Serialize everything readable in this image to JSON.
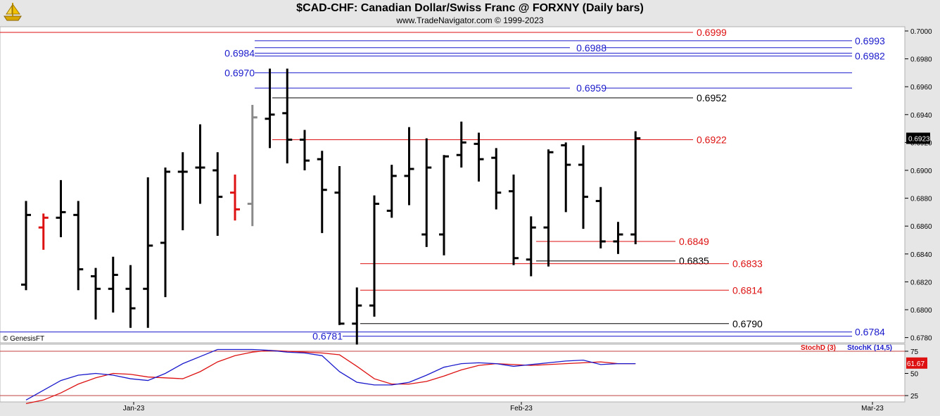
{
  "header": {
    "title": "$CAD-CHF:  Canadian Dollar/Swiss Franc @ FORXNY  (Daily bars)",
    "subtitle": "www.TradeNavigator.com © 1999-2023"
  },
  "copyright": "© GenesisFT",
  "colors": {
    "red": "#dd1111",
    "blue": "#1a1acc",
    "black": "#000000",
    "gray": "#8a8a8a"
  },
  "chart_data": [
    {
      "type": "ohlc",
      "title": "$CAD-CHF:  Canadian Dollar/Swiss Franc @ FORXNY  (Daily bars)",
      "ylim": [
        0.677,
        0.7005
      ],
      "yticks": [
        "0.7000",
        "0.6980",
        "0.6960",
        "0.6940",
        "0.6920",
        "0.6900",
        "0.6880",
        "0.6860",
        "0.6840",
        "0.6820",
        "0.6800",
        "0.6780"
      ],
      "xticks": [
        "Jan-23",
        "Feb-23",
        "Mar-23"
      ],
      "last_value": "0.6923",
      "bars": [
        {
          "o": 0.6818,
          "h": 0.6878,
          "l": 0.6814,
          "c": 0.6868,
          "color": "black"
        },
        {
          "o": 0.6859,
          "h": 0.6869,
          "l": 0.6843,
          "c": 0.6866,
          "color": "red"
        },
        {
          "o": 0.6866,
          "h": 0.6893,
          "l": 0.6852,
          "c": 0.687,
          "color": "black"
        },
        {
          "o": 0.6868,
          "h": 0.6878,
          "l": 0.6814,
          "c": 0.6829,
          "color": "black"
        },
        {
          "o": 0.6824,
          "h": 0.683,
          "l": 0.6793,
          "c": 0.6815,
          "color": "black"
        },
        {
          "o": 0.6815,
          "h": 0.6838,
          "l": 0.6798,
          "c": 0.6825,
          "color": "black"
        },
        {
          "o": 0.6815,
          "h": 0.6832,
          "l": 0.6787,
          "c": 0.6801,
          "color": "black"
        },
        {
          "o": 0.6815,
          "h": 0.6895,
          "l": 0.6787,
          "c": 0.6846,
          "color": "black"
        },
        {
          "o": 0.6848,
          "h": 0.6902,
          "l": 0.6809,
          "c": 0.6899,
          "color": "black"
        },
        {
          "o": 0.6899,
          "h": 0.6913,
          "l": 0.6857,
          "c": 0.6899,
          "color": "black"
        },
        {
          "o": 0.6902,
          "h": 0.6933,
          "l": 0.6876,
          "c": 0.6902,
          "color": "black"
        },
        {
          "o": 0.69,
          "h": 0.6913,
          "l": 0.6853,
          "c": 0.6881,
          "color": "black"
        },
        {
          "o": 0.6884,
          "h": 0.6897,
          "l": 0.6864,
          "c": 0.6872,
          "color": "red"
        },
        {
          "o": 0.6876,
          "h": 0.6947,
          "l": 0.686,
          "c": 0.6938,
          "color": "gray"
        },
        {
          "o": 0.6937,
          "h": 0.6973,
          "l": 0.6916,
          "c": 0.694,
          "color": "black"
        },
        {
          "o": 0.6941,
          "h": 0.6973,
          "l": 0.6905,
          "c": 0.6922,
          "color": "black"
        },
        {
          "o": 0.6922,
          "h": 0.6929,
          "l": 0.69,
          "c": 0.6907,
          "color": "black"
        },
        {
          "o": 0.6908,
          "h": 0.6914,
          "l": 0.6855,
          "c": 0.6886,
          "color": "black"
        },
        {
          "o": 0.6884,
          "h": 0.6903,
          "l": 0.6789,
          "c": 0.679,
          "color": "black"
        },
        {
          "o": 0.679,
          "h": 0.6816,
          "l": 0.6775,
          "c": 0.6803,
          "color": "black"
        },
        {
          "o": 0.6803,
          "h": 0.6882,
          "l": 0.6795,
          "c": 0.6876,
          "color": "black"
        },
        {
          "o": 0.6871,
          "h": 0.6904,
          "l": 0.6866,
          "c": 0.6896,
          "color": "black"
        },
        {
          "o": 0.6896,
          "h": 0.6931,
          "l": 0.6875,
          "c": 0.6901,
          "color": "black"
        },
        {
          "o": 0.6854,
          "h": 0.6923,
          "l": 0.6845,
          "c": 0.6902,
          "color": "black"
        },
        {
          "o": 0.6854,
          "h": 0.6911,
          "l": 0.6839,
          "c": 0.691,
          "color": "black"
        },
        {
          "o": 0.6911,
          "h": 0.6935,
          "l": 0.6902,
          "c": 0.692,
          "color": "black"
        },
        {
          "o": 0.6919,
          "h": 0.6927,
          "l": 0.6892,
          "c": 0.6908,
          "color": "black"
        },
        {
          "o": 0.6909,
          "h": 0.6916,
          "l": 0.6872,
          "c": 0.6884,
          "color": "black"
        },
        {
          "o": 0.6885,
          "h": 0.6897,
          "l": 0.6832,
          "c": 0.6837,
          "color": "black"
        },
        {
          "o": 0.6836,
          "h": 0.6867,
          "l": 0.6824,
          "c": 0.6859,
          "color": "black"
        },
        {
          "o": 0.6859,
          "h": 0.6915,
          "l": 0.6831,
          "c": 0.6913,
          "color": "black"
        },
        {
          "o": 0.6918,
          "h": 0.692,
          "l": 0.687,
          "c": 0.6904,
          "color": "black"
        },
        {
          "o": 0.6904,
          "h": 0.6918,
          "l": 0.6858,
          "c": 0.6881,
          "color": "black"
        },
        {
          "o": 0.6878,
          "h": 0.6888,
          "l": 0.6844,
          "c": 0.6849,
          "color": "black"
        },
        {
          "o": 0.6849,
          "h": 0.6863,
          "l": 0.684,
          "c": 0.6854,
          "color": "black"
        },
        {
          "o": 0.6854,
          "h": 0.6928,
          "l": 0.6847,
          "c": 0.6923,
          "color": "black"
        }
      ],
      "levels": [
        {
          "label": "0.6999",
          "value": 0.6999,
          "color": "red"
        },
        {
          "label": "0.6993",
          "value": 0.6993,
          "color": "blue"
        },
        {
          "label": "0.6988",
          "value": 0.6988,
          "color": "blue"
        },
        {
          "label": "0.6984",
          "value": 0.6984,
          "color": "blue"
        },
        {
          "label": "0.6982",
          "value": 0.6982,
          "color": "blue"
        },
        {
          "label": "0.6970",
          "value": 0.697,
          "color": "blue"
        },
        {
          "label": "0.6959",
          "value": 0.6959,
          "color": "blue"
        },
        {
          "label": "0.6952",
          "value": 0.6952,
          "color": "black"
        },
        {
          "label": "0.6922",
          "value": 0.6922,
          "color": "red"
        },
        {
          "label": "0.6849",
          "value": 0.6849,
          "color": "red"
        },
        {
          "label": "0.6835",
          "value": 0.6835,
          "color": "black"
        },
        {
          "label": "0.6833",
          "value": 0.6833,
          "color": "red"
        },
        {
          "label": "0.6814",
          "value": 0.6814,
          "color": "red"
        },
        {
          "label": "0.6790",
          "value": 0.679,
          "color": "black"
        },
        {
          "label": "0.6784",
          "value": 0.6784,
          "color": "blue"
        },
        {
          "label": "0.6781",
          "value": 0.6781,
          "color": "blue"
        }
      ]
    },
    {
      "type": "line",
      "ylim": [
        15,
        82
      ],
      "yticks": [
        "75",
        "50",
        "25"
      ],
      "last_value": "61.67",
      "series": [
        {
          "name": "StochD (3)",
          "color": "red",
          "values": [
            16,
            20,
            28,
            38,
            45,
            50,
            49,
            46,
            45,
            44,
            52,
            63,
            70,
            74,
            76,
            75,
            74,
            73,
            71,
            58,
            44,
            38,
            38,
            41,
            47,
            54,
            59,
            61,
            60,
            59,
            60,
            61,
            62,
            63,
            61,
            61
          ]
        },
        {
          "name": "StochK (14,5)",
          "color": "blue",
          "values": [
            20,
            31,
            42,
            48,
            50,
            48,
            44,
            42,
            50,
            61,
            69,
            77,
            77,
            77,
            76,
            74,
            73,
            70,
            52,
            40,
            37,
            37,
            40,
            48,
            57,
            61,
            62,
            61,
            58,
            60,
            62,
            64,
            65,
            60,
            61,
            61
          ]
        }
      ]
    }
  ]
}
